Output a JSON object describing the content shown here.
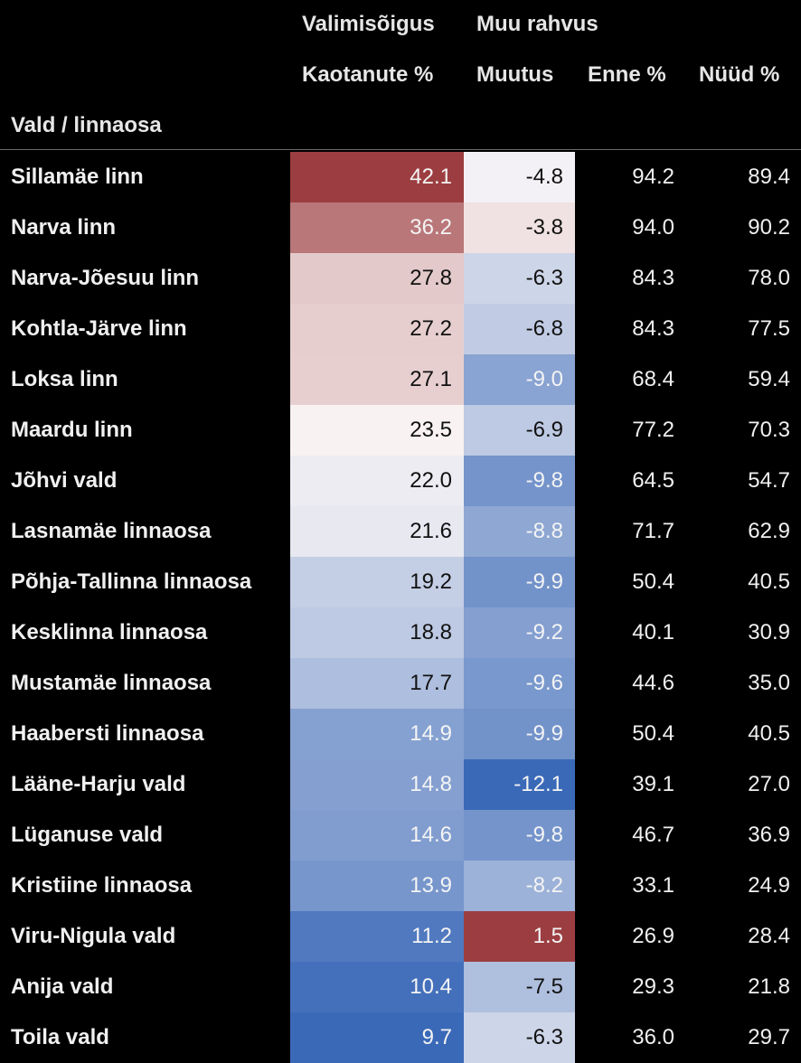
{
  "chart_data": {
    "type": "table",
    "headers": {
      "col_name": "Vald / linnaosa",
      "group1": "Valimisõigus",
      "col_lost": "Kaotanute %",
      "group2": "Muu rahvus",
      "col_change": "Muutus",
      "col_before": "Enne %",
      "col_now": "Nüüd %"
    },
    "rows": [
      {
        "name": "Sillamäe linn",
        "lost": "42.1",
        "change": "-4.8",
        "before": "94.2",
        "now": "89.4"
      },
      {
        "name": "Narva linn",
        "lost": "36.2",
        "change": "-3.8",
        "before": "94.0",
        "now": "90.2"
      },
      {
        "name": "Narva-Jõesuu linn",
        "lost": "27.8",
        "change": "-6.3",
        "before": "84.3",
        "now": "78.0"
      },
      {
        "name": "Kohtla-Järve linn",
        "lost": "27.2",
        "change": "-6.8",
        "before": "84.3",
        "now": "77.5"
      },
      {
        "name": "Loksa linn",
        "lost": "27.1",
        "change": "-9.0",
        "before": "68.4",
        "now": "59.4"
      },
      {
        "name": "Maardu linn",
        "lost": "23.5",
        "change": "-6.9",
        "before": "77.2",
        "now": "70.3"
      },
      {
        "name": "Jõhvi vald",
        "lost": "22.0",
        "change": "-9.8",
        "before": "64.5",
        "now": "54.7"
      },
      {
        "name": "Lasnamäe linnaosa",
        "lost": "21.6",
        "change": "-8.8",
        "before": "71.7",
        "now": "62.9"
      },
      {
        "name": "Põhja-Tallinna linnaosa",
        "lost": "19.2",
        "change": "-9.9",
        "before": "50.4",
        "now": "40.5"
      },
      {
        "name": "Kesklinna linnaosa",
        "lost": "18.8",
        "change": "-9.2",
        "before": "40.1",
        "now": "30.9"
      },
      {
        "name": "Mustamäe linnaosa",
        "lost": "17.7",
        "change": "-9.6",
        "before": "44.6",
        "now": "35.0"
      },
      {
        "name": "Haabersti linnaosa",
        "lost": "14.9",
        "change": "-9.9",
        "before": "50.4",
        "now": "40.5"
      },
      {
        "name": "Lääne-Harju vald",
        "lost": "14.8",
        "change": "-12.1",
        "before": "39.1",
        "now": "27.0"
      },
      {
        "name": "Lüganuse vald",
        "lost": "14.6",
        "change": "-9.8",
        "before": "46.7",
        "now": "36.9"
      },
      {
        "name": "Kristiine linnaosa",
        "lost": "13.9",
        "change": "-8.2",
        "before": "33.1",
        "now": "24.9"
      },
      {
        "name": "Viru-Nigula vald",
        "lost": "11.2",
        "change": "1.5",
        "before": "26.9",
        "now": "28.4"
      },
      {
        "name": "Anija vald",
        "lost": "10.4",
        "change": "-7.5",
        "before": "29.3",
        "now": "21.8"
      },
      {
        "name": "Toila vald",
        "lost": "9.7",
        "change": "-6.3",
        "before": "36.0",
        "now": "29.7"
      }
    ]
  },
  "colors": {
    "red_strong": "#9c3e41",
    "neutral": "#fbf7f7",
    "blue_strong": "#3a69b8"
  }
}
